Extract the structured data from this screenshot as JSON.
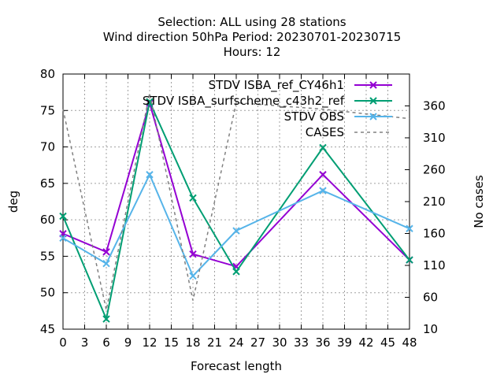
{
  "chart_data": {
    "type": "line",
    "title_lines": [
      "Selection: ALL using    28 stations",
      "Wind direction 50hPa   Period: 20230701-20230715",
      "Hours:  12"
    ],
    "xlabel": "Forecast length",
    "ylabel": "deg",
    "y2label": "No cases",
    "xlim": [
      0,
      48
    ],
    "ylim": [
      45,
      80
    ],
    "y2lim": [
      10,
      410
    ],
    "x_ticks": [
      0,
      3,
      6,
      9,
      12,
      15,
      18,
      21,
      24,
      27,
      30,
      33,
      36,
      39,
      42,
      45,
      48
    ],
    "y_ticks": [
      45,
      50,
      55,
      60,
      65,
      70,
      75,
      80
    ],
    "y2_ticks": [
      10,
      60,
      110,
      160,
      210,
      260,
      310,
      360
    ],
    "grid": true,
    "legend_position": "top-right",
    "series": [
      {
        "name": "STDV ISBA_ref_CY46h1",
        "legend_label": "STDV ISBA_ref_CY46h1",
        "color": "#9400d3",
        "marker": "x",
        "dashed": false,
        "axis": "y1",
        "x": [
          0,
          6,
          12,
          18,
          24,
          36,
          48
        ],
        "values": [
          58.1,
          55.6,
          76.0,
          55.3,
          53.6,
          66.2,
          54.5
        ]
      },
      {
        "name": "STDV ISBA_surfscheme_c43h2_ref",
        "legend_label": "STDV ISBA_surfscheme_c43h2_ref",
        "color": "#009e73",
        "marker": "x",
        "dashed": false,
        "axis": "y1",
        "x": [
          0,
          6,
          12,
          18,
          24,
          36,
          48
        ],
        "values": [
          60.5,
          46.4,
          76.2,
          63.0,
          52.9,
          69.9,
          54.5
        ]
      },
      {
        "name": "STDV OBS",
        "legend_label": "STDV OBS",
        "color": "#56b4e9",
        "marker": "x",
        "dashed": false,
        "axis": "y1",
        "x": [
          0,
          6,
          12,
          18,
          24,
          36,
          48
        ],
        "values": [
          57.5,
          54.0,
          66.2,
          52.3,
          58.5,
          64.0,
          58.8
        ]
      },
      {
        "name": "CASES",
        "legend_label": "CASES",
        "color": "#808080",
        "marker": "none",
        "dashed": true,
        "axis": "y2",
        "x": [
          0,
          6,
          12,
          18,
          24,
          36,
          48
        ],
        "values": [
          355,
          40,
          380,
          55,
          365,
          355,
          340
        ]
      }
    ]
  }
}
